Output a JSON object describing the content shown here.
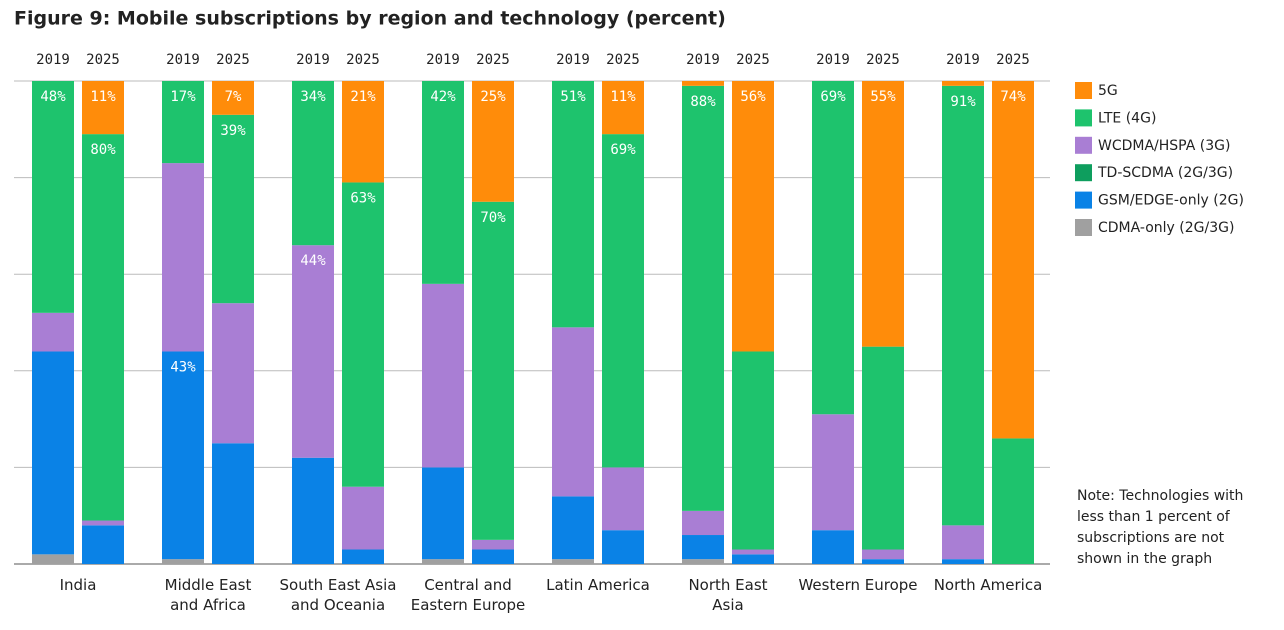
{
  "chart_data": {
    "type": "grouped-stacked-bar",
    "title": "Figure 9: Mobile subscriptions by region and technology (percent)",
    "groups": [
      "India",
      "Middle East\nand Africa",
      "South East Asia\nand Oceania",
      "Central and\nEastern Europe",
      "Latin America",
      "North East\nAsia",
      "Western Europe",
      "North America"
    ],
    "x": [
      "2019",
      "2025",
      "2019",
      "2025",
      "2019",
      "2025",
      "2019",
      "2025",
      "2019",
      "2025",
      "2019",
      "2025",
      "2019",
      "2025",
      "2019",
      "2025"
    ],
    "ylim": [
      0,
      100
    ],
    "yticks": [
      0,
      20,
      40,
      60,
      80,
      100
    ],
    "grid": true,
    "series": [
      {
        "name": "5G",
        "color": "#ff8c0a",
        "values": [
          0,
          11,
          0,
          7,
          0,
          21,
          0,
          25,
          0,
          11,
          1,
          56,
          0,
          55,
          1,
          74
        ],
        "value_labels": [
          null,
          "11%",
          null,
          "7%",
          null,
          "21%",
          null,
          "25%",
          null,
          "11%",
          null,
          "56%",
          null,
          "55%",
          null,
          "74%"
        ]
      },
      {
        "name": "LTE (4G)",
        "color": "#1ec36d",
        "values": [
          48,
          80,
          17,
          39,
          34,
          63,
          42,
          70,
          51,
          69,
          88,
          41,
          69,
          42,
          91,
          26
        ],
        "value_labels": [
          "48%",
          "80%",
          "17%",
          "39%",
          "34%",
          "63%",
          "42%",
          "70%",
          "51%",
          "69%",
          "88%",
          null,
          "69%",
          null,
          "91%",
          null
        ]
      },
      {
        "name": "WCDMA/HSPA (3G)",
        "color": "#a97ed4",
        "values": [
          8,
          1,
          39,
          29,
          44,
          13,
          38,
          2,
          35,
          13,
          5,
          1,
          24,
          2,
          7,
          0
        ],
        "value_labels": [
          null,
          null,
          null,
          null,
          "44%",
          null,
          null,
          null,
          null,
          null,
          null,
          null,
          null,
          null,
          null,
          null
        ]
      },
      {
        "name": "TD-SCDMA (2G/3G)",
        "color": "#0e9e5e",
        "values": [
          0,
          0,
          0,
          0,
          0,
          0,
          0,
          0,
          0,
          0,
          0,
          0,
          0,
          0,
          0,
          0
        ]
      },
      {
        "name": "GSM/EDGE-only (2G)",
        "color": "#0a82e6",
        "values": [
          42,
          8,
          43,
          25,
          22,
          3,
          19,
          3,
          13,
          7,
          5,
          2,
          7,
          1,
          1,
          0
        ],
        "value_labels": [
          null,
          null,
          "43%",
          null,
          null,
          null,
          null,
          null,
          null,
          null,
          null,
          null,
          null,
          null,
          null,
          null
        ]
      },
      {
        "name": "CDMA-only (2G/3G)",
        "color": "#a0a0a0",
        "values": [
          2,
          0,
          1,
          0,
          0,
          0,
          1,
          0,
          1,
          0,
          1,
          0,
          0,
          0,
          0,
          0
        ]
      }
    ],
    "note": "Note: Technologies with\nless than 1 percent of\nsubscriptions are not\nshown in the graph"
  }
}
